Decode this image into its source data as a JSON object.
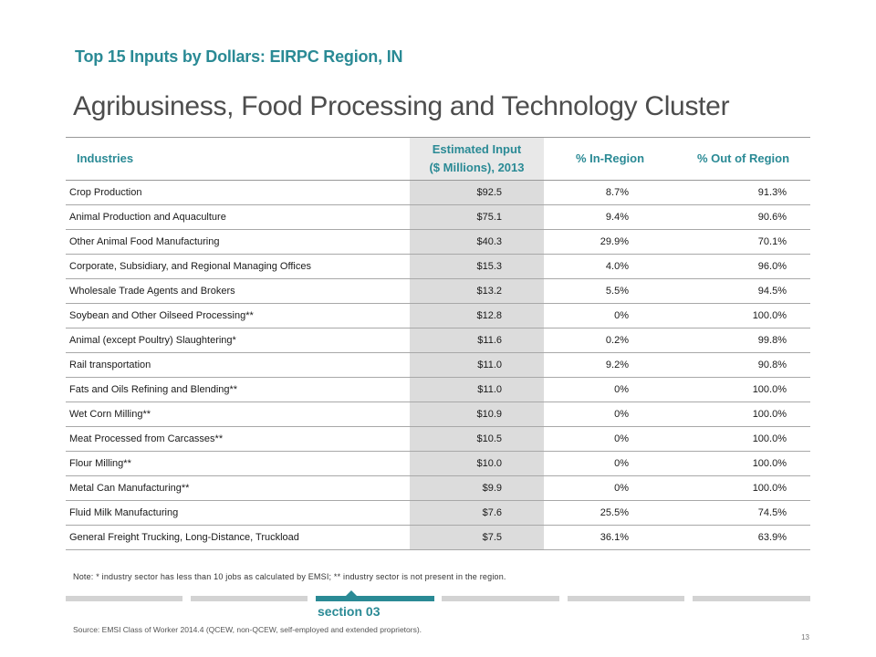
{
  "header": {
    "kicker": "Top 15 Inputs by Dollars: EIRPC Region, IN",
    "title": "Agribusiness, Food Processing and Technology Cluster"
  },
  "table": {
    "columns": {
      "industries": "Industries",
      "estimated_line1": "Estimated Input",
      "estimated_line2": "($ Millions), 2013",
      "in_region": "% In-Region",
      "out_region": "% Out of Region"
    },
    "rows": [
      {
        "industry": "Crop Production",
        "estimated": "$92.5",
        "in_region": "8.7%",
        "out_region": "91.3%"
      },
      {
        "industry": "Animal Production and Aquaculture",
        "estimated": "$75.1",
        "in_region": "9.4%",
        "out_region": "90.6%"
      },
      {
        "industry": "Other Animal Food Manufacturing",
        "estimated": "$40.3",
        "in_region": "29.9%",
        "out_region": "70.1%"
      },
      {
        "industry": "Corporate, Subsidiary, and Regional Managing Offices",
        "estimated": "$15.3",
        "in_region": "4.0%",
        "out_region": "96.0%"
      },
      {
        "industry": "Wholesale Trade Agents and Brokers",
        "estimated": "$13.2",
        "in_region": "5.5%",
        "out_region": "94.5%"
      },
      {
        "industry": "Soybean and Other Oilseed Processing**",
        "estimated": "$12.8",
        "in_region": "0%",
        "out_region": "100.0%"
      },
      {
        "industry": "Animal (except Poultry) Slaughtering*",
        "estimated": "$11.6",
        "in_region": "0.2%",
        "out_region": "99.8%"
      },
      {
        "industry": "Rail transportation",
        "estimated": "$11.0",
        "in_region": "9.2%",
        "out_region": "90.8%"
      },
      {
        "industry": "Fats and Oils Refining and Blending**",
        "estimated": "$11.0",
        "in_region": "0%",
        "out_region": "100.0%"
      },
      {
        "industry": "Wet Corn Milling**",
        "estimated": "$10.9",
        "in_region": "0%",
        "out_region": "100.0%"
      },
      {
        "industry": "Meat Processed from Carcasses**",
        "estimated": "$10.5",
        "in_region": "0%",
        "out_region": "100.0%"
      },
      {
        "industry": "Flour Milling**",
        "estimated": "$10.0",
        "in_region": "0%",
        "out_region": "100.0%"
      },
      {
        "industry": "Metal Can Manufacturing**",
        "estimated": "$9.9",
        "in_region": "0%",
        "out_region": "100.0%"
      },
      {
        "industry": "Fluid Milk Manufacturing",
        "estimated": "$7.6",
        "in_region": "25.5%",
        "out_region": "74.5%"
      },
      {
        "industry": "General Freight Trucking, Long-Distance, Truckload",
        "estimated": "$7.5",
        "in_region": "36.1%",
        "out_region": "63.9%"
      }
    ]
  },
  "note": "Note: * industry sector has less than 10 jobs as calculated by EMSI; ** industry sector is not present in the region.",
  "footer": {
    "section_label": "section 03",
    "source": "Source: EMSI Class of Worker 2014.4 (QCEW, non-QCEW, self-employed and extended proprietors).",
    "page_number": "13"
  },
  "colors": {
    "accent": "#2a8a95",
    "shaded_column": "#dcdcdc",
    "nav_inactive": "#d3d3d3"
  }
}
